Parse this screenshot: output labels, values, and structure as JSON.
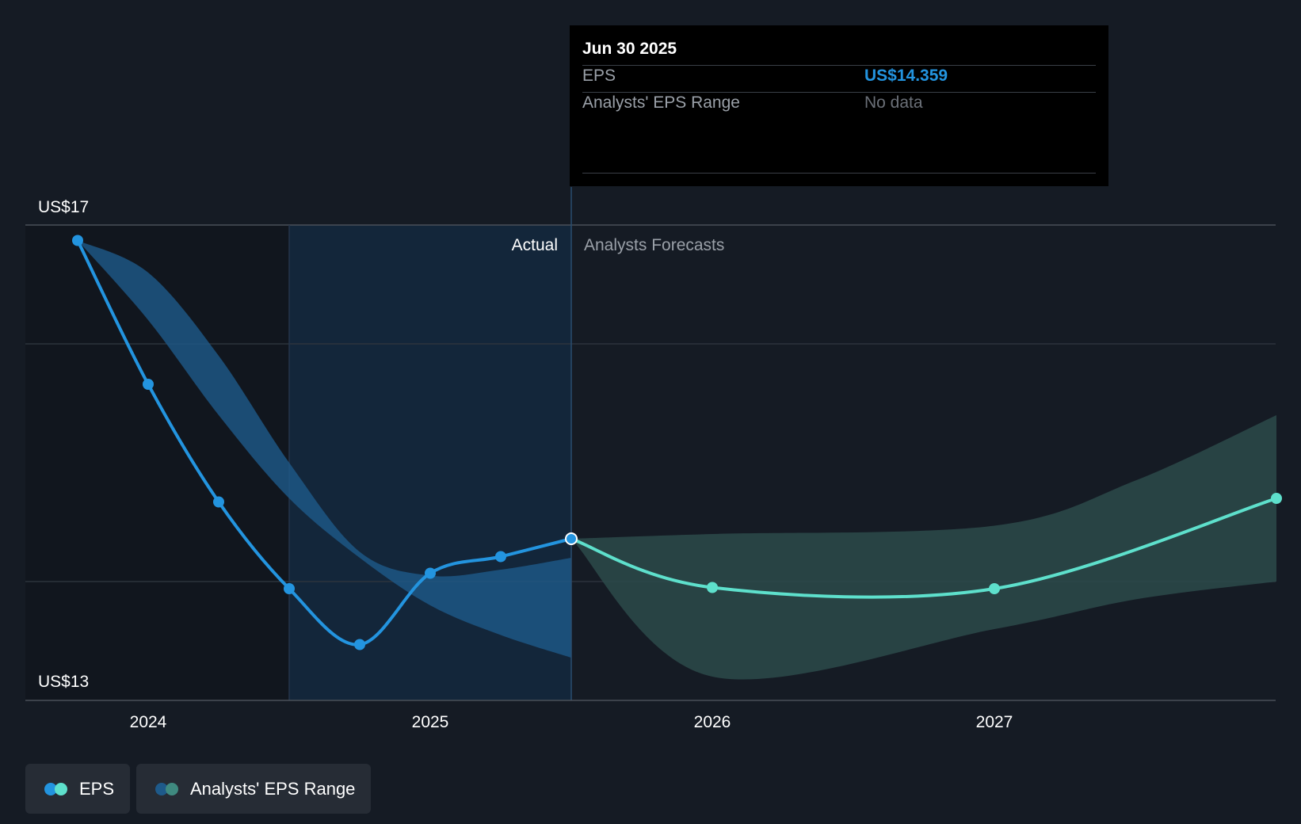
{
  "chart_data": {
    "type": "line",
    "x_ticks": [
      "2024",
      "2025",
      "2026",
      "2027"
    ],
    "y_tick_labels": [
      "US$17",
      "US$13"
    ],
    "ylim": [
      13,
      17
    ],
    "section_labels": {
      "actual": "Actual",
      "forecast": "Analysts Forecasts"
    },
    "eps_actual": [
      {
        "x": 2023.75,
        "y": 16.87
      },
      {
        "x": 2024.0,
        "y": 15.66
      },
      {
        "x": 2024.25,
        "y": 14.67
      },
      {
        "x": 2024.5,
        "y": 13.94
      },
      {
        "x": 2024.75,
        "y": 13.47
      },
      {
        "x": 2025.0,
        "y": 14.07
      },
      {
        "x": 2025.25,
        "y": 14.21
      },
      {
        "x": 2025.5,
        "y": 14.36
      }
    ],
    "eps_forecast": [
      {
        "x": 2025.5,
        "y": 14.36
      },
      {
        "x": 2026.0,
        "y": 13.95
      },
      {
        "x": 2027.0,
        "y": 13.94
      },
      {
        "x": 2028.0,
        "y": 14.7
      }
    ],
    "range_past": {
      "x": [
        2023.75,
        2024.0,
        2024.25,
        2024.5,
        2024.75,
        2025.0,
        2025.25,
        2025.5
      ],
      "upper": [
        16.87,
        16.6,
        15.9,
        15.0,
        14.25,
        14.05,
        14.1,
        14.2
      ],
      "lower": [
        16.87,
        16.2,
        15.4,
        14.7,
        14.2,
        13.8,
        13.55,
        13.36
      ]
    },
    "range_forecast": {
      "x": [
        2025.5,
        2026.0,
        2027.0,
        2027.5,
        2028.0
      ],
      "upper": [
        14.36,
        14.4,
        14.47,
        14.85,
        15.4
      ],
      "lower": [
        14.36,
        13.2,
        13.6,
        13.85,
        14.0
      ]
    },
    "highlight": {
      "x": 2025.5,
      "y": 14.36
    },
    "colors": {
      "eps_actual": "#2394df",
      "eps_forecast": "#5ee0cc",
      "range_past": "#1e5a8a",
      "range_forecast": "#2b4a4a"
    },
    "legend": [
      {
        "label": "EPS"
      },
      {
        "label": "Analysts' EPS Range"
      }
    ]
  },
  "tooltip": {
    "date": "Jun 30 2025",
    "rows": [
      {
        "label": "EPS",
        "value": "US$14.359"
      },
      {
        "label": "Analysts' EPS Range",
        "value": "No data"
      }
    ]
  }
}
